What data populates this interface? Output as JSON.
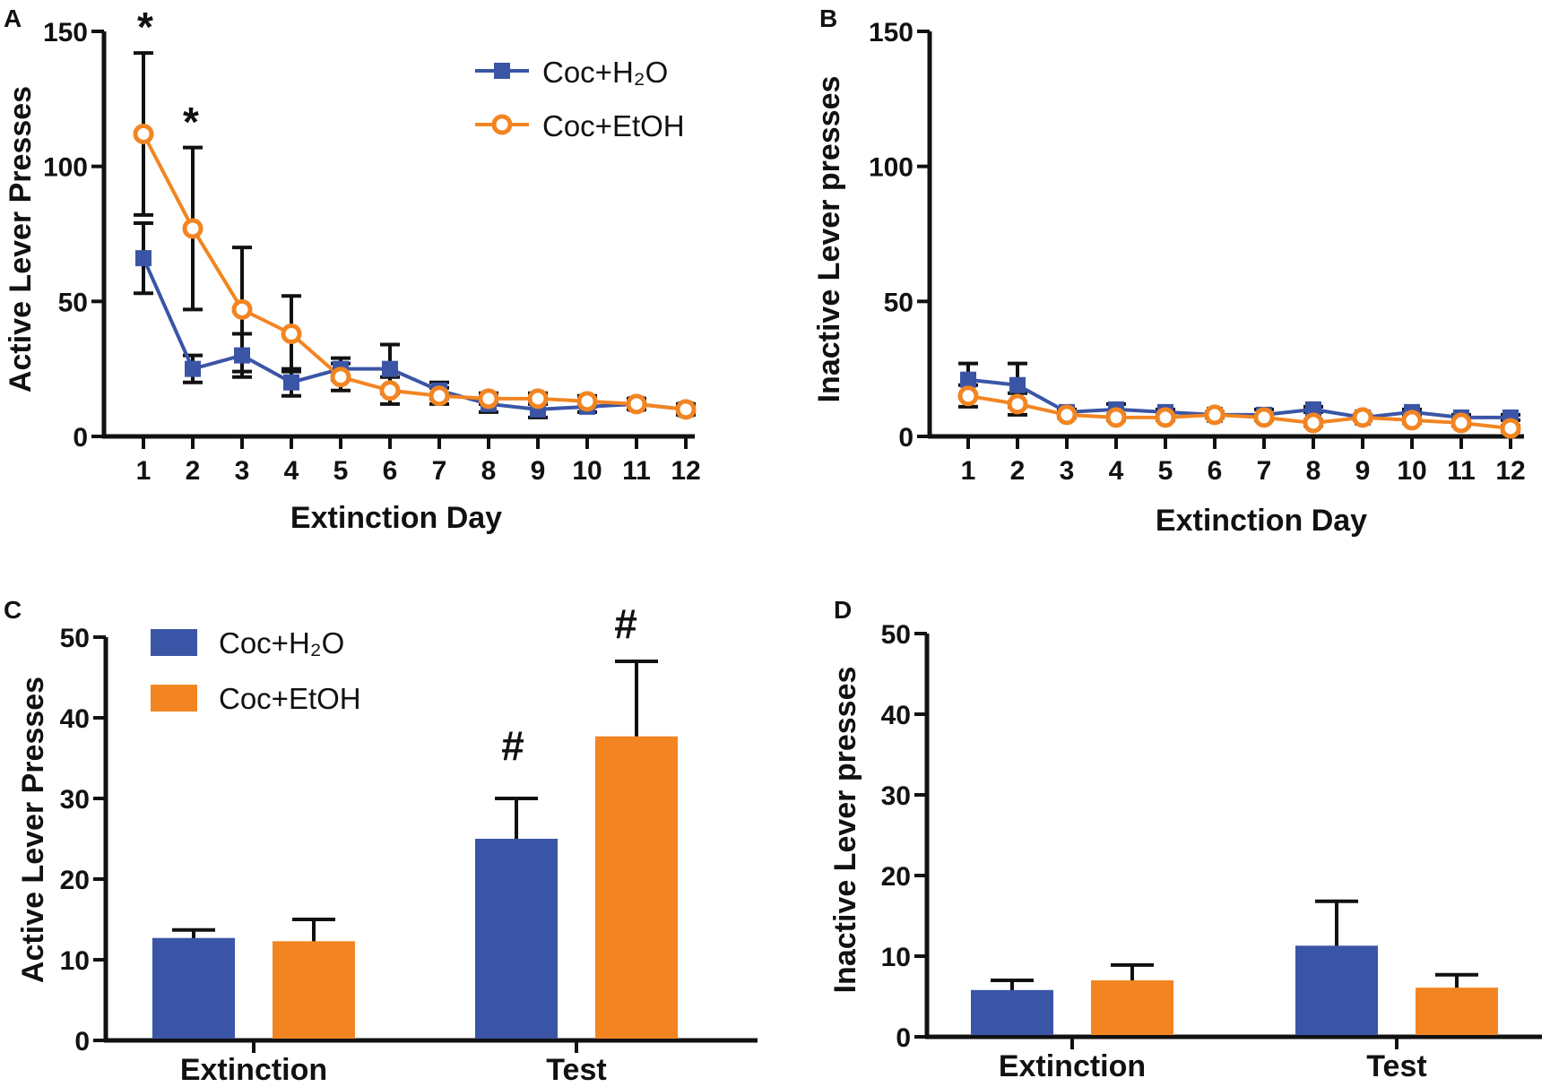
{
  "figure": {
    "colors": {
      "h2o": "#3a55a6",
      "etoh": "#f28522",
      "axis": "#111111"
    }
  },
  "chart_data": [
    {
      "panel": "A",
      "type": "line",
      "title": "",
      "xlabel": "Extinction Day",
      "ylabel": "Active Lever Presses",
      "ylim": [
        0,
        150
      ],
      "yticks": [
        "0",
        "50",
        "100",
        "150"
      ],
      "categories": [
        "1",
        "2",
        "3",
        "4",
        "5",
        "6",
        "7",
        "8",
        "9",
        "10",
        "11",
        "12"
      ],
      "legend": [
        "Coc+H₂O",
        "Coc+EtOH"
      ],
      "annotations": [
        {
          "text": "*",
          "day": 1
        },
        {
          "text": "*",
          "day": 2
        }
      ],
      "series": [
        {
          "name": "Coc+H₂O",
          "marker": "square",
          "values": [
            66,
            25,
            30,
            20,
            25,
            25,
            17,
            12,
            10,
            11,
            12,
            10
          ],
          "err": [
            13,
            5,
            8,
            5,
            4,
            9,
            3,
            3,
            3,
            2,
            2,
            2
          ]
        },
        {
          "name": "Coc+EtOH",
          "marker": "circle",
          "values": [
            112,
            77,
            47,
            38,
            22,
            17,
            15,
            14,
            14,
            13,
            12,
            10
          ],
          "err": [
            30,
            30,
            23,
            14,
            5,
            5,
            3,
            2,
            2,
            2,
            2,
            1
          ]
        }
      ]
    },
    {
      "panel": "B",
      "type": "line",
      "title": "",
      "xlabel": "Extinction Day",
      "ylabel": "Inactive Lever presses",
      "ylim": [
        0,
        150
      ],
      "yticks": [
        "0",
        "50",
        "100",
        "150"
      ],
      "categories": [
        "1",
        "2",
        "3",
        "4",
        "5",
        "6",
        "7",
        "8",
        "9",
        "10",
        "11",
        "12"
      ],
      "series": [
        {
          "name": "Coc+H₂O",
          "marker": "square",
          "values": [
            21,
            19,
            9,
            10,
            9,
            8,
            8,
            10,
            7,
            9,
            7,
            7
          ],
          "err": [
            6,
            8,
            1,
            2,
            1,
            1,
            2,
            1,
            1,
            1,
            1,
            1
          ]
        },
        {
          "name": "Coc+EtOH",
          "marker": "circle",
          "values": [
            15,
            12,
            8,
            7,
            7,
            8,
            7,
            5,
            7,
            6,
            5,
            3
          ],
          "err": [
            4,
            4,
            1,
            1,
            1,
            1,
            1,
            1,
            1,
            1,
            1,
            1
          ]
        }
      ]
    },
    {
      "panel": "C",
      "type": "bar",
      "title": "",
      "xlabel": "",
      "ylabel": "Active Lever Presses",
      "ylim": [
        0,
        50
      ],
      "yticks": [
        "0",
        "10",
        "20",
        "30",
        "40",
        "50"
      ],
      "categories": [
        "Extinction",
        "Test"
      ],
      "legend": [
        "Coc+H₂O",
        "Coc+EtOH"
      ],
      "annotations": [
        {
          "text": "#",
          "category": "Test",
          "series": "Coc+H₂O"
        },
        {
          "text": "#",
          "category": "Test",
          "series": "Coc+EtOH"
        }
      ],
      "series": [
        {
          "name": "Coc+H₂O",
          "values": [
            12.7,
            25
          ],
          "err": [
            1,
            5
          ]
        },
        {
          "name": "Coc+EtOH",
          "values": [
            12.3,
            37.7
          ],
          "err": [
            2.7,
            9.3
          ]
        }
      ]
    },
    {
      "panel": "D",
      "type": "bar",
      "title": "",
      "xlabel": "",
      "ylabel": "Inactive Lever presses",
      "ylim": [
        0,
        50
      ],
      "yticks": [
        "0",
        "10",
        "20",
        "30",
        "40",
        "50"
      ],
      "categories": [
        "Extinction",
        "Test"
      ],
      "series": [
        {
          "name": "Coc+H₂O",
          "values": [
            5.8,
            11.3
          ],
          "err": [
            1.2,
            5.5
          ]
        },
        {
          "name": "Coc+EtOH",
          "values": [
            7,
            6.1
          ],
          "err": [
            1.9,
            1.6
          ]
        }
      ]
    }
  ]
}
